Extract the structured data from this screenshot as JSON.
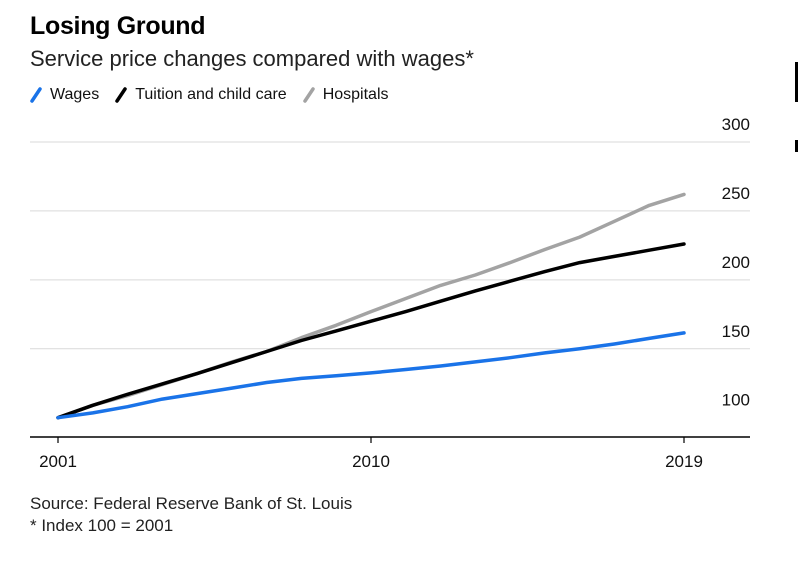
{
  "title": "Losing Ground",
  "subtitle": "Service price changes compared with wages*",
  "source": "Source: Federal Reserve Bank of St. Louis",
  "footnote": "* Index 100 = 2001",
  "colors": {
    "wages": "#1a73e8",
    "tuition": "#000000",
    "hospitals": "#a3a3a3",
    "grid": "#d9d9d9"
  },
  "chart_data": {
    "type": "line",
    "title": "Losing Ground",
    "subtitle": "Service price changes compared with wages*",
    "xlabel": "",
    "ylabel": "",
    "x_ticks": [
      "2001",
      "2010",
      "2019"
    ],
    "y_ticks": [
      100,
      150,
      200,
      250,
      300
    ],
    "xlim": [
      2001,
      2019
    ],
    "ylim": [
      86,
      300
    ],
    "grid": true,
    "legend_position": "top-left",
    "x": [
      2001,
      2002,
      2003,
      2004,
      2005,
      2006,
      2007,
      2008,
      2009,
      2010,
      2011,
      2012,
      2013,
      2014,
      2015,
      2016,
      2017,
      2018,
      2019
    ],
    "series": [
      {
        "name": "Wages",
        "color": "#1a73e8",
        "values": [
          100,
          103.5,
          108,
          113.5,
          117.5,
          121.5,
          125.5,
          128.5,
          130.5,
          132.5,
          135,
          137.5,
          140.5,
          143.5,
          147,
          150,
          153.5,
          157.5,
          161.5
        ]
      },
      {
        "name": "Tuition and child care",
        "color": "#000000",
        "values": [
          100,
          109,
          117,
          124.5,
          132,
          140,
          148,
          156,
          163,
          170,
          177,
          184.5,
          192,
          199,
          206,
          212.5,
          217,
          221.5,
          226
        ]
      },
      {
        "name": "Hospitals",
        "color": "#a3a3a3",
        "values": [
          100,
          109,
          116,
          124,
          132,
          140.5,
          148,
          158,
          167,
          177,
          186.5,
          196,
          203.5,
          212.5,
          222,
          231,
          242.5,
          254,
          262
        ]
      }
    ]
  }
}
